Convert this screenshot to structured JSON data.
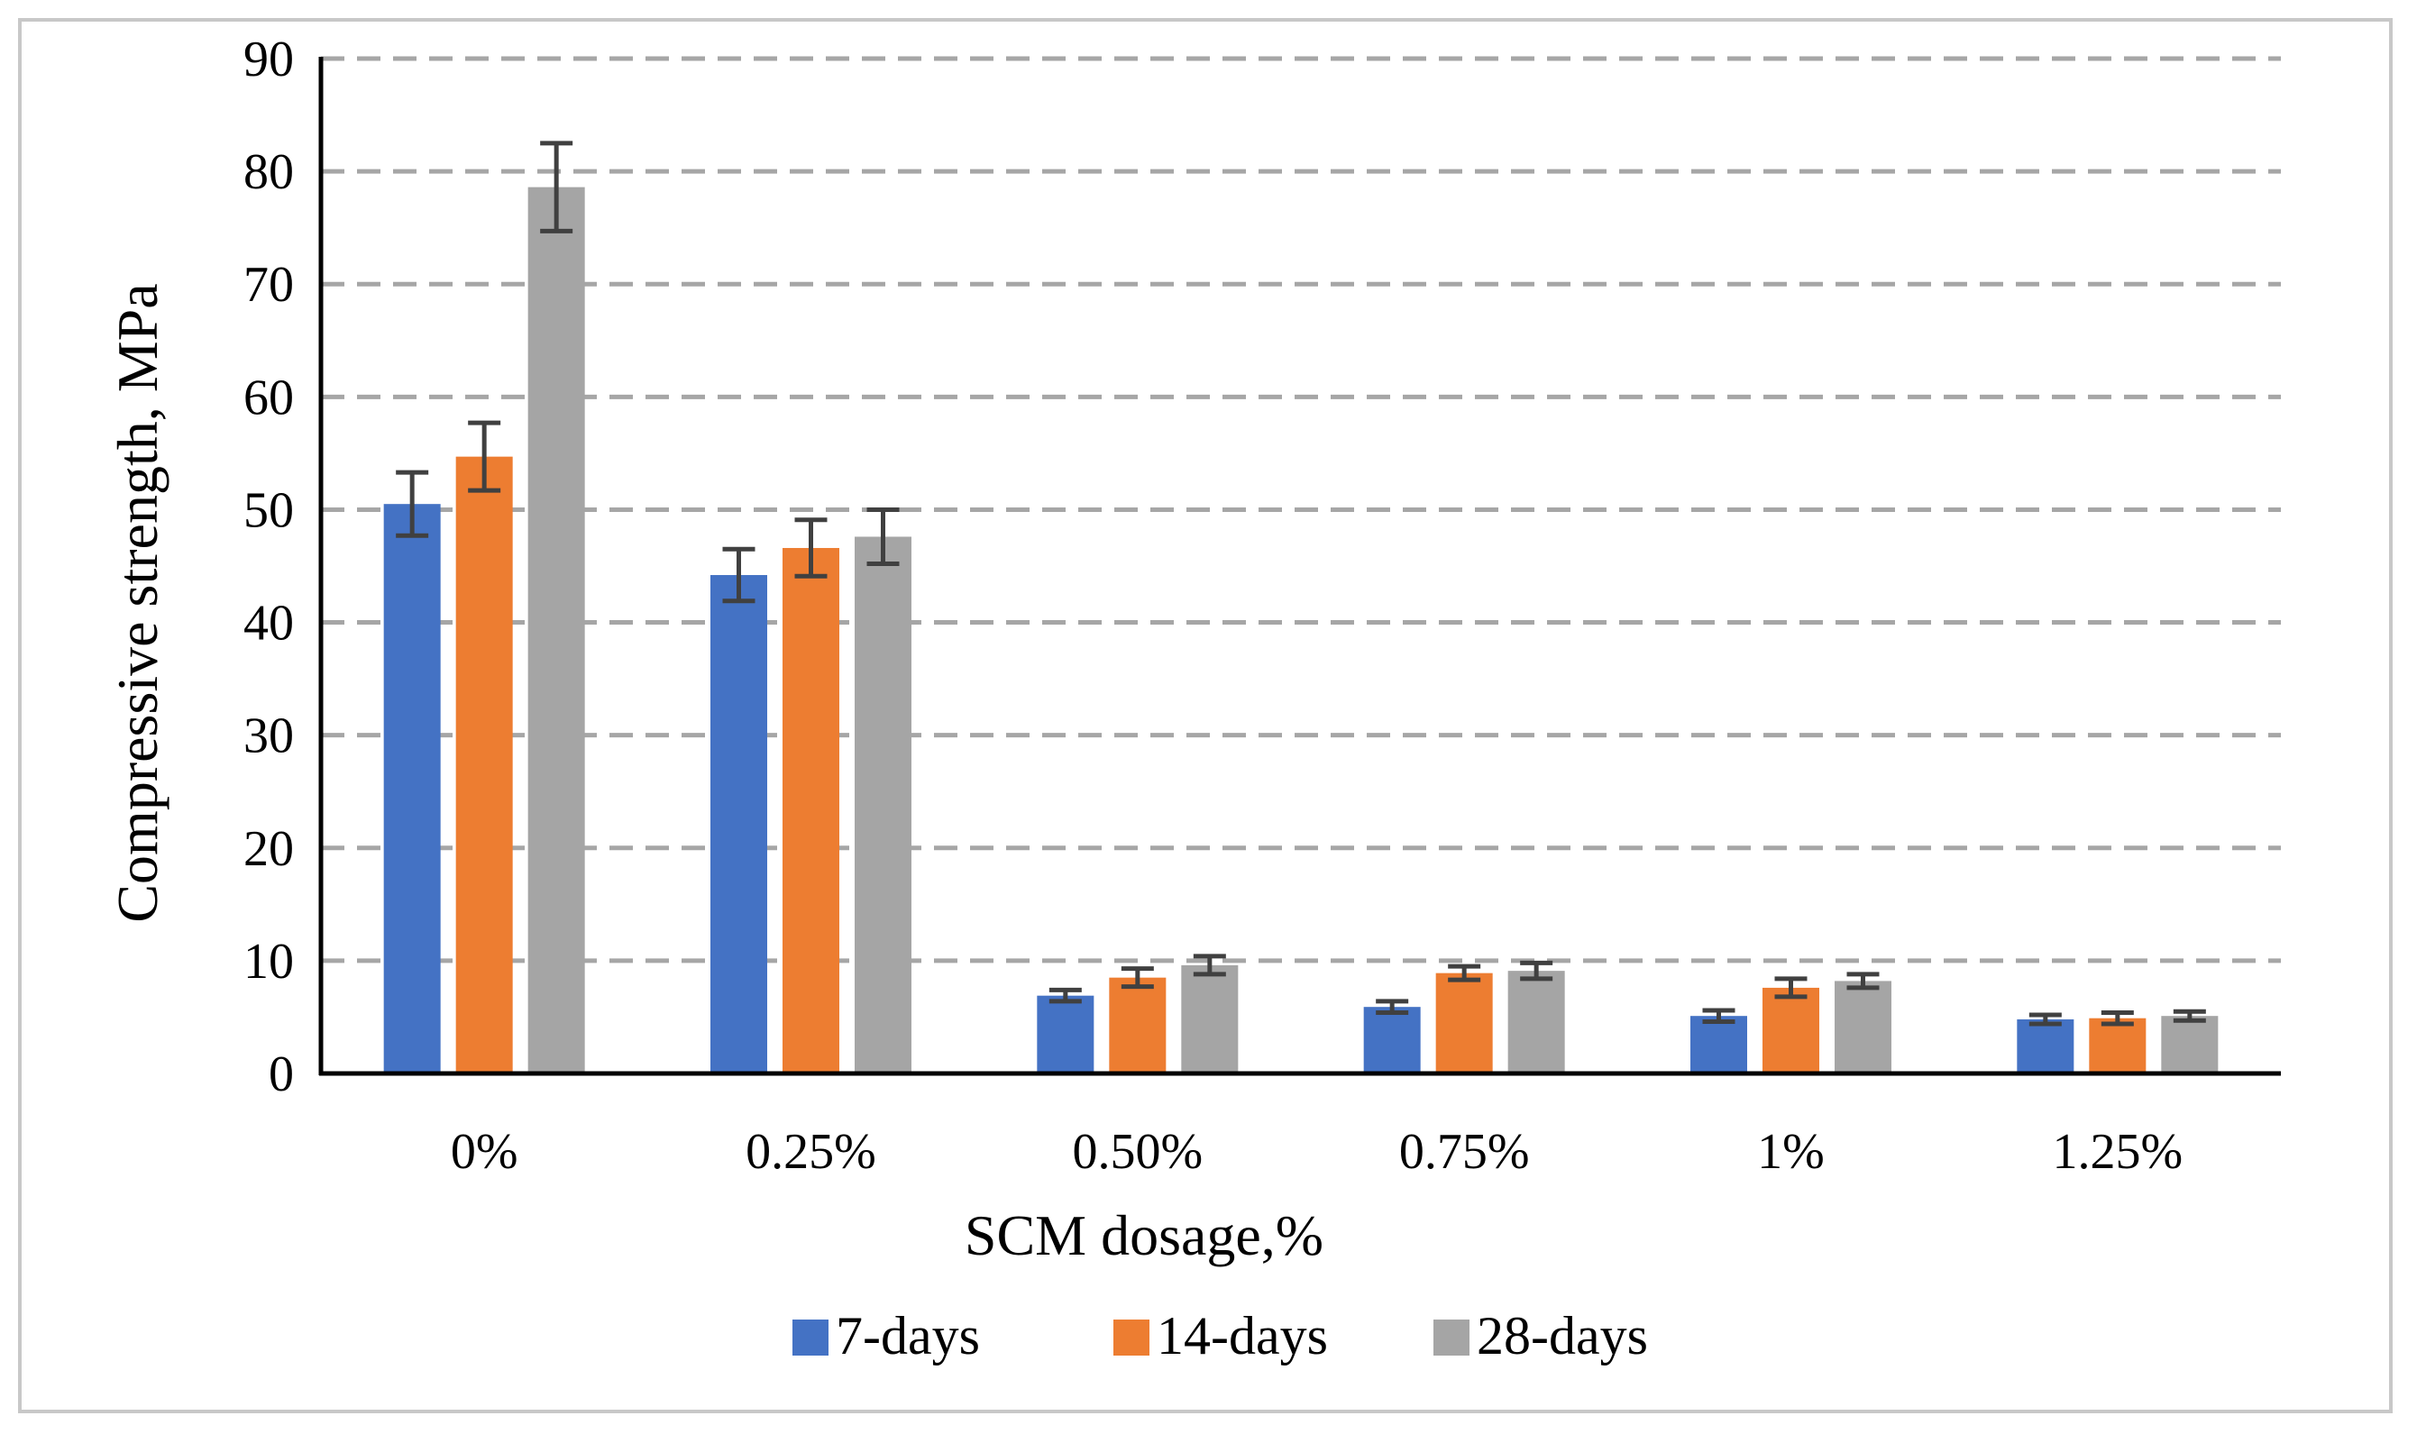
{
  "chart_data": {
    "type": "bar",
    "title": "",
    "xlabel": "SCM dosage,%",
    "ylabel": "Compressive strength, MPa",
    "ylim": [
      0,
      90
    ],
    "yticks": [
      0,
      10,
      20,
      30,
      40,
      50,
      60,
      70,
      80,
      90
    ],
    "grid": "horizontal dashed",
    "legend_position": "bottom",
    "categories": [
      "0%",
      "0.25%",
      "0.50%",
      "0.75%",
      "1%",
      "1.25%"
    ],
    "series": [
      {
        "name": "7-days",
        "color": "#4472c4",
        "values": [
          50.5,
          44.2,
          6.9,
          5.9,
          5.1,
          4.8
        ],
        "errors": [
          2.8,
          2.3,
          0.5,
          0.5,
          0.5,
          0.4
        ]
      },
      {
        "name": "14-days",
        "color": "#ed7d31",
        "values": [
          54.7,
          46.6,
          8.5,
          8.9,
          7.6,
          4.9
        ],
        "errors": [
          3.0,
          2.5,
          0.8,
          0.6,
          0.8,
          0.5
        ]
      },
      {
        "name": "28-days",
        "color": "#a5a5a5",
        "values": [
          78.6,
          47.6,
          9.6,
          9.1,
          8.2,
          5.1
        ],
        "errors": [
          3.9,
          2.4,
          0.8,
          0.7,
          0.6,
          0.4
        ]
      }
    ]
  }
}
